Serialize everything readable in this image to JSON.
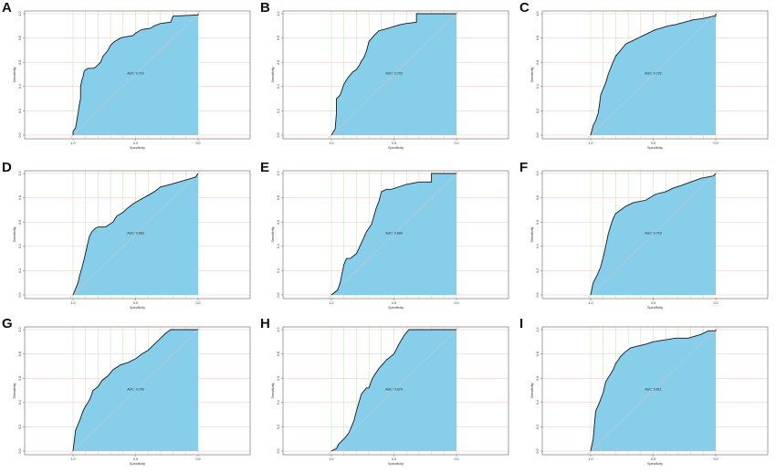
{
  "colors": {
    "fill": "#87ceeb",
    "curve": "#1a1a1a",
    "grid_v": "#b7dcb0",
    "grid_h": "#f0b8b8",
    "diagonal": "#c8c8c8",
    "frame": "#444444"
  },
  "chart_data": [
    {
      "panel": "A",
      "type": "line",
      "xlabel": "Specificity",
      "ylabel": "Sensitivity",
      "xlim": [
        1.0,
        0.0
      ],
      "ylim": [
        0.0,
        1.0
      ],
      "xticks": [
        "1.0",
        "0.5",
        "0.0"
      ],
      "yticks": [
        "0.0",
        "0.2",
        "0.4",
        "0.6",
        "0.8",
        "1.0"
      ],
      "auc_label": "AUC: 0.710",
      "grid": true,
      "x": [
        1.0,
        1.0,
        0.98,
        0.97,
        0.96,
        0.95,
        0.94,
        0.94,
        0.93,
        0.92,
        0.91,
        0.88,
        0.86,
        0.84,
        0.82,
        0.78,
        0.76,
        0.72,
        0.7,
        0.67,
        0.62,
        0.58,
        0.52,
        0.5,
        0.45,
        0.38,
        0.35,
        0.3,
        0.22,
        0.2,
        0.0,
        0.0
      ],
      "y": [
        0.0,
        0.03,
        0.06,
        0.12,
        0.18,
        0.25,
        0.3,
        0.4,
        0.45,
        0.48,
        0.53,
        0.55,
        0.55,
        0.55,
        0.56,
        0.6,
        0.65,
        0.7,
        0.74,
        0.77,
        0.8,
        0.81,
        0.82,
        0.84,
        0.87,
        0.88,
        0.9,
        0.92,
        0.93,
        0.98,
        0.99,
        1.0
      ]
    },
    {
      "panel": "B",
      "type": "line",
      "xlabel": "Specificity",
      "ylabel": "Sensitivity",
      "xlim": [
        1.0,
        0.0
      ],
      "ylim": [
        0.0,
        1.0
      ],
      "xticks": [
        "1.0",
        "0.5",
        "0.0"
      ],
      "yticks": [
        "0.0",
        "0.2",
        "0.4",
        "0.6",
        "0.8",
        "1.0"
      ],
      "auc_label": "AUC: 0.702",
      "grid": true,
      "x": [
        1.0,
        0.97,
        0.96,
        0.96,
        0.93,
        0.9,
        0.87,
        0.83,
        0.8,
        0.78,
        0.76,
        0.74,
        0.72,
        0.7,
        0.66,
        0.62,
        0.58,
        0.45,
        0.4,
        0.32,
        0.32,
        0.0
      ],
      "y": [
        0.0,
        0.05,
        0.18,
        0.3,
        0.33,
        0.42,
        0.47,
        0.52,
        0.54,
        0.57,
        0.61,
        0.64,
        0.69,
        0.77,
        0.82,
        0.86,
        0.87,
        0.91,
        0.92,
        0.93,
        1.0,
        1.0
      ]
    },
    {
      "panel": "C",
      "type": "line",
      "xlabel": "Specificity",
      "ylabel": "Sensitivity",
      "xlim": [
        1.0,
        0.0
      ],
      "ylim": [
        0.0,
        1.0
      ],
      "xticks": [
        "1.0",
        "0.5",
        "0.0"
      ],
      "yticks": [
        "0.0",
        "0.2",
        "0.4",
        "0.6",
        "0.8",
        "1.0"
      ],
      "auc_label": "AUC: 0.722",
      "grid": true,
      "x": [
        1.0,
        0.98,
        0.96,
        0.94,
        0.93,
        0.92,
        0.9,
        0.88,
        0.86,
        0.83,
        0.8,
        0.76,
        0.72,
        0.68,
        0.62,
        0.58,
        0.52,
        0.48,
        0.44,
        0.38,
        0.32,
        0.25,
        0.18,
        0.1,
        0.02,
        0.0,
        0.0
      ],
      "y": [
        0.0,
        0.08,
        0.12,
        0.18,
        0.25,
        0.33,
        0.38,
        0.43,
        0.5,
        0.58,
        0.65,
        0.7,
        0.75,
        0.77,
        0.8,
        0.82,
        0.85,
        0.87,
        0.88,
        0.9,
        0.91,
        0.93,
        0.95,
        0.96,
        0.98,
        0.98,
        1.0
      ]
    },
    {
      "panel": "D",
      "type": "line",
      "xlabel": "Specificity",
      "ylabel": "Sensitivity",
      "xlim": [
        1.0,
        0.0
      ],
      "ylim": [
        0.0,
        1.0
      ],
      "xticks": [
        "1.0",
        "0.5",
        "0.0"
      ],
      "yticks": [
        "0.0",
        "0.2",
        "0.4",
        "0.6",
        "0.8",
        "1.0"
      ],
      "auc_label": "AUC: 0.683",
      "grid": true,
      "x": [
        1.0,
        0.98,
        0.96,
        0.95,
        0.93,
        0.91,
        0.89,
        0.87,
        0.85,
        0.82,
        0.8,
        0.74,
        0.68,
        0.65,
        0.6,
        0.57,
        0.52,
        0.47,
        0.4,
        0.35,
        0.3,
        0.22,
        0.12,
        0.02,
        0.0
      ],
      "y": [
        0.0,
        0.05,
        0.1,
        0.15,
        0.22,
        0.3,
        0.39,
        0.48,
        0.52,
        0.55,
        0.56,
        0.56,
        0.6,
        0.65,
        0.68,
        0.71,
        0.75,
        0.78,
        0.82,
        0.85,
        0.89,
        0.91,
        0.94,
        0.97,
        1.0
      ]
    },
    {
      "panel": "E",
      "type": "line",
      "xlabel": "Specificity",
      "ylabel": "Sensitivity",
      "xlim": [
        1.0,
        0.0
      ],
      "ylim": [
        0.0,
        1.0
      ],
      "xticks": [
        "1.0",
        "0.5",
        "0.0"
      ],
      "yticks": [
        "0.0",
        "0.2",
        "0.4",
        "0.6",
        "0.8",
        "1.0"
      ],
      "auc_label": "AUC: 0.684",
      "grid": true,
      "x": [
        1.0,
        0.95,
        0.93,
        0.9,
        0.88,
        0.85,
        0.8,
        0.75,
        0.72,
        0.68,
        0.66,
        0.64,
        0.62,
        0.6,
        0.56,
        0.52,
        0.46,
        0.4,
        0.3,
        0.2,
        0.2,
        0.0
      ],
      "y": [
        0.0,
        0.04,
        0.1,
        0.25,
        0.3,
        0.3,
        0.34,
        0.45,
        0.52,
        0.58,
        0.65,
        0.72,
        0.77,
        0.85,
        0.87,
        0.87,
        0.89,
        0.91,
        0.93,
        0.93,
        1.0,
        1.0
      ]
    },
    {
      "panel": "F",
      "type": "line",
      "xlabel": "Specificity",
      "ylabel": "Sensitivity",
      "xlim": [
        1.0,
        0.0
      ],
      "ylim": [
        0.0,
        1.0
      ],
      "xticks": [
        "1.0",
        "0.5",
        "0.0"
      ],
      "yticks": [
        "0.0",
        "0.2",
        "0.4",
        "0.6",
        "0.8",
        "1.0"
      ],
      "auc_label": "AUC: 0.710",
      "grid": true,
      "x": [
        1.0,
        0.98,
        0.95,
        0.92,
        0.9,
        0.88,
        0.86,
        0.84,
        0.82,
        0.8,
        0.76,
        0.72,
        0.66,
        0.56,
        0.48,
        0.4,
        0.34,
        0.28,
        0.2,
        0.12,
        0.02,
        0.0
      ],
      "y": [
        0.0,
        0.1,
        0.16,
        0.23,
        0.31,
        0.4,
        0.5,
        0.57,
        0.63,
        0.67,
        0.7,
        0.73,
        0.76,
        0.78,
        0.83,
        0.85,
        0.88,
        0.9,
        0.93,
        0.96,
        0.98,
        1.0
      ]
    },
    {
      "panel": "G",
      "type": "line",
      "xlabel": "Specificity",
      "ylabel": "Sensitivity",
      "xlim": [
        1.0,
        0.0
      ],
      "ylim": [
        0.0,
        1.0
      ],
      "xticks": [
        "1.0",
        "0.5",
        "0.0"
      ],
      "yticks": [
        "0.0",
        "0.2",
        "0.4",
        "0.6",
        "0.8",
        "1.0"
      ],
      "auc_label": "AUC: 0.700",
      "grid": true,
      "x": [
        1.0,
        0.98,
        0.96,
        0.94,
        0.92,
        0.9,
        0.88,
        0.86,
        0.84,
        0.8,
        0.77,
        0.72,
        0.68,
        0.62,
        0.56,
        0.5,
        0.45,
        0.4,
        0.35,
        0.3,
        0.26,
        0.22,
        0.2,
        0.0
      ],
      "y": [
        0.0,
        0.17,
        0.22,
        0.27,
        0.33,
        0.37,
        0.4,
        0.44,
        0.5,
        0.53,
        0.58,
        0.62,
        0.67,
        0.71,
        0.73,
        0.76,
        0.8,
        0.83,
        0.88,
        0.93,
        0.97,
        1.0,
        1.0,
        1.0
      ]
    },
    {
      "panel": "H",
      "type": "line",
      "xlabel": "Specificity",
      "ylabel": "Sensitivity",
      "xlim": [
        1.0,
        0.0
      ],
      "ylim": [
        0.0,
        1.0
      ],
      "xticks": [
        "1.0",
        "0.5",
        "0.0"
      ],
      "yticks": [
        "0.0",
        "0.2",
        "0.4",
        "0.6",
        "0.8",
        "1.0"
      ],
      "auc_label": "AUC: 0.674",
      "grid": true,
      "x": [
        1.0,
        0.96,
        0.94,
        0.9,
        0.86,
        0.82,
        0.8,
        0.78,
        0.76,
        0.72,
        0.7,
        0.68,
        0.66,
        0.62,
        0.56,
        0.5,
        0.46,
        0.42,
        0.38,
        0.0
      ],
      "y": [
        0.0,
        0.02,
        0.06,
        0.1,
        0.15,
        0.25,
        0.33,
        0.4,
        0.47,
        0.52,
        0.52,
        0.58,
        0.62,
        0.68,
        0.75,
        0.8,
        0.88,
        0.95,
        1.0,
        1.0
      ]
    },
    {
      "panel": "I",
      "type": "line",
      "xlabel": "Specificity",
      "ylabel": "Sensitivity",
      "xlim": [
        1.0,
        0.0
      ],
      "ylim": [
        0.0,
        1.0
      ],
      "xticks": [
        "1.0",
        "0.5",
        "0.0"
      ],
      "yticks": [
        "0.0",
        "0.2",
        "0.4",
        "0.6",
        "0.8",
        "1.0"
      ],
      "auc_label": "AUC: 0.811",
      "grid": true,
      "x": [
        1.0,
        0.98,
        0.96,
        0.93,
        0.9,
        0.88,
        0.85,
        0.82,
        0.8,
        0.76,
        0.72,
        0.68,
        0.64,
        0.56,
        0.5,
        0.44,
        0.32,
        0.22,
        0.12,
        0.06,
        0.0,
        0.0
      ],
      "y": [
        0.0,
        0.1,
        0.33,
        0.4,
        0.48,
        0.57,
        0.62,
        0.67,
        0.72,
        0.78,
        0.82,
        0.85,
        0.86,
        0.88,
        0.9,
        0.91,
        0.93,
        0.93,
        0.96,
        0.99,
        0.99,
        1.0
      ]
    }
  ]
}
